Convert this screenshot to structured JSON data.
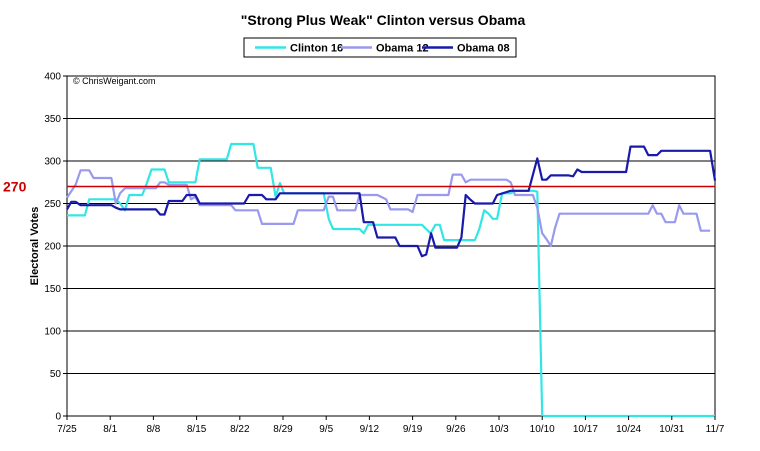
{
  "chart_data": {
    "type": "line",
    "title": "\"Strong Plus Weak\" Clinton versus Obama",
    "xlabel": "",
    "ylabel": "Electoral Votes",
    "ylim": [
      0,
      400
    ],
    "yticks": [
      0,
      50,
      100,
      150,
      200,
      250,
      300,
      350,
      400
    ],
    "xlim": [
      0,
      105
    ],
    "x_ticks": [
      {
        "x": 0,
        "label": "7/25"
      },
      {
        "x": 7,
        "label": "8/1"
      },
      {
        "x": 14,
        "label": "8/8"
      },
      {
        "x": 21,
        "label": "8/15"
      },
      {
        "x": 28,
        "label": "8/22"
      },
      {
        "x": 35,
        "label": "8/29"
      },
      {
        "x": 42,
        "label": "9/5"
      },
      {
        "x": 49,
        "label": "9/12"
      },
      {
        "x": 56,
        "label": "9/19"
      },
      {
        "x": 63,
        "label": "9/26"
      },
      {
        "x": 70,
        "label": "10/3"
      },
      {
        "x": 77,
        "label": "10/10"
      },
      {
        "x": 84,
        "label": "10/17"
      },
      {
        "x": 91,
        "label": "10/24"
      },
      {
        "x": 98,
        "label": "10/31"
      },
      {
        "x": 105,
        "label": "11/7"
      }
    ],
    "grid": "horizontal",
    "legend": "top-center",
    "watermark": "© ChrisWeigant.com",
    "reference_line": {
      "value": 270,
      "label": "270",
      "color": "#cc0000"
    },
    "series": [
      {
        "name": "Clinton 16",
        "color": "#33e6e6",
        "points": [
          [
            0,
            236
          ],
          [
            2.9,
            236
          ],
          [
            3.6,
            255
          ],
          [
            7.9,
            255
          ],
          [
            8.6,
            250
          ],
          [
            9.4,
            242
          ],
          [
            10.1,
            260
          ],
          [
            12.2,
            260
          ],
          [
            12.9,
            273
          ],
          [
            13.7,
            290
          ],
          [
            15.8,
            290
          ],
          [
            16.5,
            275
          ],
          [
            19.4,
            275
          ],
          [
            20.8,
            275
          ],
          [
            21.5,
            302
          ],
          [
            25.9,
            302
          ],
          [
            26.6,
            320
          ],
          [
            30.2,
            320
          ],
          [
            30.9,
            292
          ],
          [
            33,
            292
          ],
          [
            33.8,
            258
          ],
          [
            34.5,
            274
          ],
          [
            35.2,
            262
          ],
          [
            37.4,
            262
          ],
          [
            40.9,
            262
          ],
          [
            41.6,
            262
          ],
          [
            42.4,
            232
          ],
          [
            43.1,
            220
          ],
          [
            47.4,
            220
          ],
          [
            48.1,
            215
          ],
          [
            48.8,
            225
          ],
          [
            57.5,
            225
          ],
          [
            58.2,
            220
          ],
          [
            58.9,
            215
          ],
          [
            59.7,
            225
          ],
          [
            60.4,
            225
          ],
          [
            61.1,
            207
          ],
          [
            65.4,
            207
          ],
          [
            66.1,
            207
          ],
          [
            66.8,
            220
          ],
          [
            67.6,
            242
          ],
          [
            68.3,
            238
          ],
          [
            69,
            232
          ],
          [
            69.7,
            232
          ],
          [
            70.5,
            262
          ],
          [
            71.9,
            262
          ],
          [
            72.6,
            265
          ],
          [
            75.5,
            265
          ],
          [
            76.2,
            264
          ],
          [
            77,
            0
          ],
          [
            105,
            0
          ]
        ]
      },
      {
        "name": "Obama 12",
        "color": "#9999ee",
        "points": [
          [
            0,
            257
          ],
          [
            1.4,
            272
          ],
          [
            2.2,
            289
          ],
          [
            3.6,
            289
          ],
          [
            4.3,
            280
          ],
          [
            6.5,
            280
          ],
          [
            7.2,
            280
          ],
          [
            7.9,
            250
          ],
          [
            8.6,
            262
          ],
          [
            9.4,
            268
          ],
          [
            11.5,
            268
          ],
          [
            12.2,
            268
          ],
          [
            14.4,
            268
          ],
          [
            15.1,
            275
          ],
          [
            15.8,
            275
          ],
          [
            16.5,
            272
          ],
          [
            19.4,
            272
          ],
          [
            20.1,
            255
          ],
          [
            20.8,
            258
          ],
          [
            21.5,
            248
          ],
          [
            26.6,
            248
          ],
          [
            27.3,
            242
          ],
          [
            30.9,
            242
          ],
          [
            31.6,
            226
          ],
          [
            36.7,
            226
          ],
          [
            37.4,
            242
          ],
          [
            41.6,
            242
          ],
          [
            42.4,
            258
          ],
          [
            43.1,
            258
          ],
          [
            43.8,
            242
          ],
          [
            45.2,
            242
          ],
          [
            46.7,
            242
          ],
          [
            47.4,
            260
          ],
          [
            50.3,
            260
          ],
          [
            51.7,
            255
          ],
          [
            52.4,
            243
          ],
          [
            55.3,
            243
          ],
          [
            56,
            240
          ],
          [
            56.8,
            260
          ],
          [
            61.1,
            260
          ],
          [
            61.8,
            260
          ],
          [
            62.5,
            284
          ],
          [
            63.9,
            284
          ],
          [
            64.6,
            275
          ],
          [
            65.4,
            278
          ],
          [
            71.2,
            278
          ],
          [
            71.9,
            275
          ],
          [
            72.6,
            260
          ],
          [
            75.5,
            260
          ],
          [
            76.2,
            245
          ],
          [
            77,
            215
          ],
          [
            77.7,
            208
          ],
          [
            78.4,
            200
          ],
          [
            79.1,
            222
          ],
          [
            79.8,
            238
          ],
          [
            86.3,
            238
          ],
          [
            87.7,
            238
          ],
          [
            94.2,
            238
          ],
          [
            94.9,
            248
          ],
          [
            95.6,
            238
          ],
          [
            96.3,
            238
          ],
          [
            97,
            228
          ],
          [
            98.5,
            228
          ],
          [
            99.2,
            248
          ],
          [
            99.9,
            238
          ],
          [
            102,
            238
          ],
          [
            102.7,
            218
          ],
          [
            103.5,
            218
          ],
          [
            104.2,
            218
          ]
        ]
      },
      {
        "name": "Obama 08",
        "color": "#1a1aaa",
        "points": [
          [
            0,
            243
          ],
          [
            0.7,
            252
          ],
          [
            1.4,
            252
          ],
          [
            2.2,
            248
          ],
          [
            7.2,
            248
          ],
          [
            7.9,
            245
          ],
          [
            8.6,
            243
          ],
          [
            14.4,
            243
          ],
          [
            15.1,
            237
          ],
          [
            15.8,
            237
          ],
          [
            16.5,
            253
          ],
          [
            18.7,
            253
          ],
          [
            19.4,
            260
          ],
          [
            20.8,
            260
          ],
          [
            21.5,
            250
          ],
          [
            28.7,
            250
          ],
          [
            29.5,
            260
          ],
          [
            31.6,
            260
          ],
          [
            32.3,
            255
          ],
          [
            33.8,
            255
          ],
          [
            34.5,
            262
          ],
          [
            47.4,
            262
          ],
          [
            48.1,
            228
          ],
          [
            49.6,
            228
          ],
          [
            50.3,
            210
          ],
          [
            53.2,
            210
          ],
          [
            53.9,
            200
          ],
          [
            56.8,
            200
          ],
          [
            57.5,
            188
          ],
          [
            58.2,
            190
          ],
          [
            59,
            215
          ],
          [
            59.7,
            198
          ],
          [
            63.2,
            198
          ],
          [
            63.9,
            210
          ],
          [
            64.6,
            260
          ],
          [
            65.3,
            255
          ],
          [
            66.1,
            250
          ],
          [
            69,
            250
          ],
          [
            69.7,
            260
          ],
          [
            71.9,
            265
          ],
          [
            74.8,
            265
          ],
          [
            76.2,
            303
          ],
          [
            77,
            278
          ],
          [
            77.7,
            278
          ],
          [
            78.4,
            283
          ],
          [
            81.3,
            283
          ],
          [
            82,
            282
          ],
          [
            82.7,
            290
          ],
          [
            83.4,
            287
          ],
          [
            85.6,
            287
          ],
          [
            90.6,
            287
          ],
          [
            91.3,
            317
          ],
          [
            93.5,
            317
          ],
          [
            94.2,
            307
          ],
          [
            95.6,
            307
          ],
          [
            96.3,
            312
          ],
          [
            100,
            312
          ],
          [
            100.6,
            312
          ],
          [
            104.2,
            312
          ],
          [
            105,
            277
          ]
        ]
      }
    ]
  }
}
